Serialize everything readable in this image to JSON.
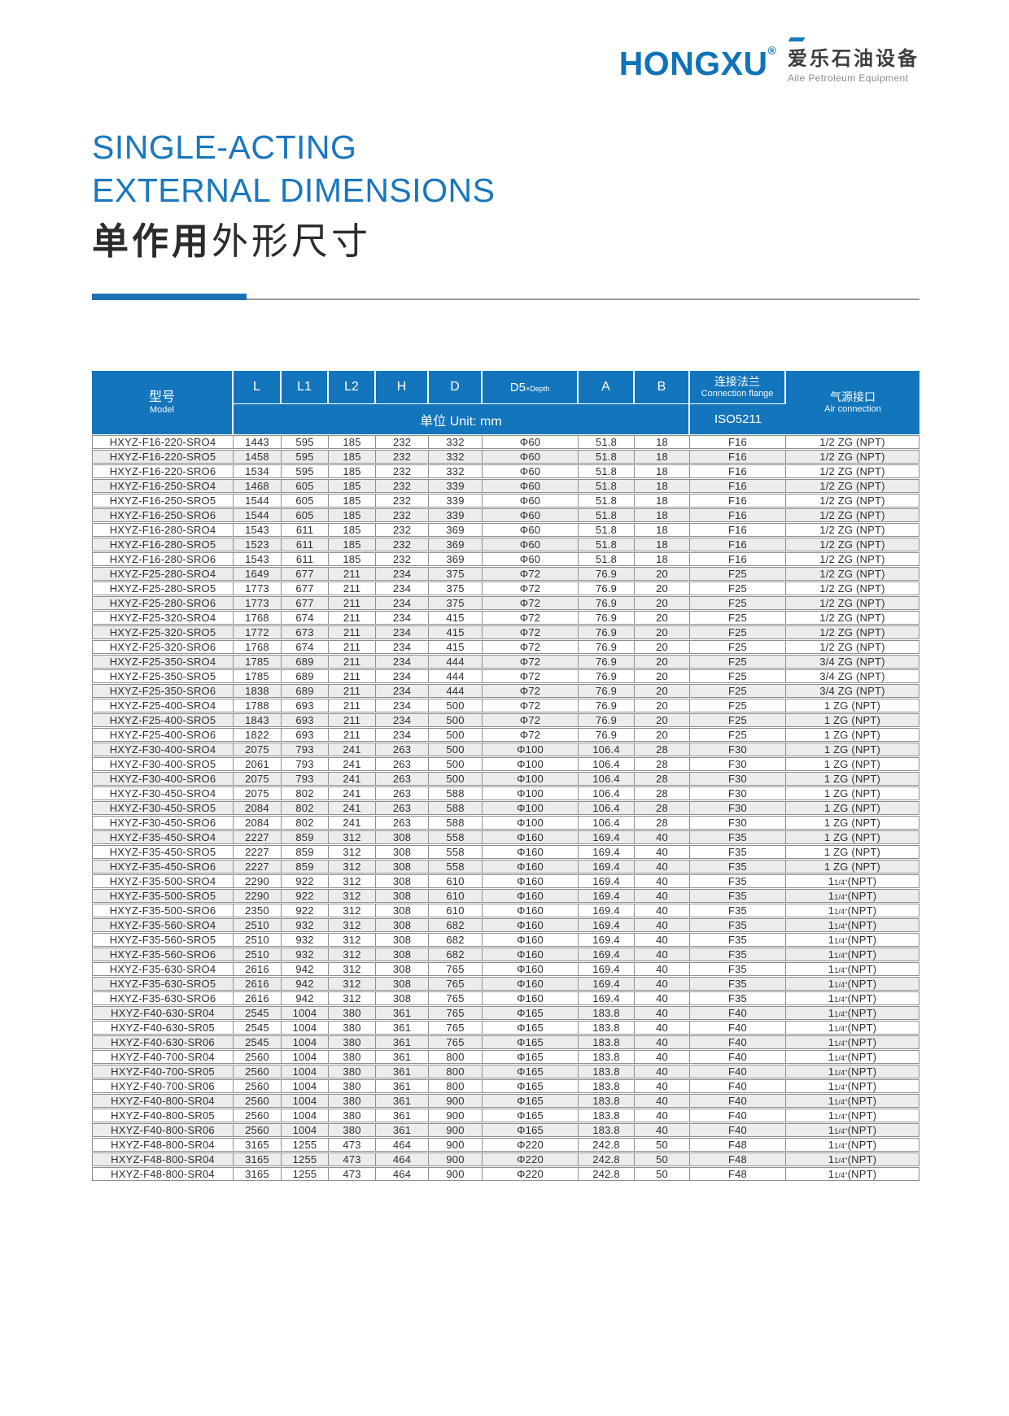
{
  "brand": {
    "name": "HONGXU",
    "reg": "®",
    "cn": "爱乐石油设备",
    "en": "Aile Petroleum Equipment",
    "accent_color": "#0e73b9"
  },
  "title": {
    "en_line1": "SINGLE-ACTING",
    "en_line2": "EXTERNAL DIMENSIONS",
    "cn_bold": "单作用",
    "cn_regular": "外形尺寸",
    "color": "#1a77be"
  },
  "table": {
    "header": {
      "model_cn": "型号",
      "model_en": "Model",
      "col_l": "L",
      "col_l1": "L1",
      "col_l2": "L2",
      "col_h": "H",
      "col_d": "D",
      "col_d5_main": "D5",
      "col_d5_sub": "×Depth",
      "col_a": "A",
      "col_b": "B",
      "unit": "单位 Unit: mm",
      "flange_cn": "连接法兰",
      "flange_en": "Connection flange",
      "flange_std": "ISO5211",
      "air_cn": "气源接口",
      "air_en": "Air connection",
      "header_bg": "#1375bb"
    },
    "rows": [
      [
        "HXYZ-F16-220-SRO4",
        "1443",
        "595",
        "185",
        "232",
        "332",
        "Φ60",
        "51.8",
        "18",
        "F16",
        "1/2 ZG (NPT)"
      ],
      [
        "HXYZ-F16-220-SRO5",
        "1458",
        "595",
        "185",
        "232",
        "332",
        "Φ60",
        "51.8",
        "18",
        "F16",
        "1/2 ZG (NPT)"
      ],
      [
        "HXYZ-F16-220-SRO6",
        "1534",
        "595",
        "185",
        "232",
        "332",
        "Φ60",
        "51.8",
        "18",
        "F16",
        "1/2 ZG (NPT)"
      ],
      [
        "HXYZ-F16-250-SRO4",
        "1468",
        "605",
        "185",
        "232",
        "339",
        "Φ60",
        "51.8",
        "18",
        "F16",
        "1/2 ZG (NPT)"
      ],
      [
        "HXYZ-F16-250-SRO5",
        "1544",
        "605",
        "185",
        "232",
        "339",
        "Φ60",
        "51.8",
        "18",
        "F16",
        "1/2 ZG (NPT)"
      ],
      [
        "HXYZ-F16-250-SRO6",
        "1544",
        "605",
        "185",
        "232",
        "339",
        "Φ60",
        "51.8",
        "18",
        "F16",
        "1/2 ZG (NPT)"
      ],
      [
        "HXYZ-F16-280-SRO4",
        "1543",
        "611",
        "185",
        "232",
        "369",
        "Φ60",
        "51.8",
        "18",
        "F16",
        "1/2 ZG (NPT)"
      ],
      [
        "HXYZ-F16-280-SRO5",
        "1523",
        "611",
        "185",
        "232",
        "369",
        "Φ60",
        "51.8",
        "18",
        "F16",
        "1/2 ZG (NPT)"
      ],
      [
        "HXYZ-F16-280-SRO6",
        "1543",
        "611",
        "185",
        "232",
        "369",
        "Φ60",
        "51.8",
        "18",
        "F16",
        "1/2 ZG (NPT)"
      ],
      [
        "HXYZ-F25-280-SRO4",
        "1649",
        "677",
        "211",
        "234",
        "375",
        "Φ72",
        "76.9",
        "20",
        "F25",
        "1/2 ZG (NPT)"
      ],
      [
        "HXYZ-F25-280-SRO5",
        "1773",
        "677",
        "211",
        "234",
        "375",
        "Φ72",
        "76.9",
        "20",
        "F25",
        "1/2 ZG (NPT)"
      ],
      [
        "HXYZ-F25-280-SRO6",
        "1773",
        "677",
        "211",
        "234",
        "375",
        "Φ72",
        "76.9",
        "20",
        "F25",
        "1/2 ZG (NPT)"
      ],
      [
        "HXYZ-F25-320-SRO4",
        "1768",
        "674",
        "211",
        "234",
        "415",
        "Φ72",
        "76.9",
        "20",
        "F25",
        "1/2 ZG (NPT)"
      ],
      [
        "HXYZ-F25-320-SRO5",
        "1772",
        "673",
        "211",
        "234",
        "415",
        "Φ72",
        "76.9",
        "20",
        "F25",
        "1/2 ZG (NPT)"
      ],
      [
        "HXYZ-F25-320-SRO6",
        "1768",
        "674",
        "211",
        "234",
        "415",
        "Φ72",
        "76.9",
        "20",
        "F25",
        "1/2 ZG (NPT)"
      ],
      [
        "HXYZ-F25-350-SRO4",
        "1785",
        "689",
        "211",
        "234",
        "444",
        "Φ72",
        "76.9",
        "20",
        "F25",
        "3/4 ZG (NPT)"
      ],
      [
        "HXYZ-F25-350-SRO5",
        "1785",
        "689",
        "211",
        "234",
        "444",
        "Φ72",
        "76.9",
        "20",
        "F25",
        "3/4 ZG (NPT)"
      ],
      [
        "HXYZ-F25-350-SRO6",
        "1838",
        "689",
        "211",
        "234",
        "444",
        "Φ72",
        "76.9",
        "20",
        "F25",
        "3/4 ZG (NPT)"
      ],
      [
        "HXYZ-F25-400-SRO4",
        "1788",
        "693",
        "211",
        "234",
        "500",
        "Φ72",
        "76.9",
        "20",
        "F25",
        "1 ZG (NPT)"
      ],
      [
        "HXYZ-F25-400-SRO5",
        "1843",
        "693",
        "211",
        "234",
        "500",
        "Φ72",
        "76.9",
        "20",
        "F25",
        "1 ZG (NPT)"
      ],
      [
        "HXYZ-F25-400-SRO6",
        "1822",
        "693",
        "211",
        "234",
        "500",
        "Φ72",
        "76.9",
        "20",
        "F25",
        "1 ZG (NPT)"
      ],
      [
        "HXYZ-F30-400-SRO4",
        "2075",
        "793",
        "241",
        "263",
        "500",
        "Φ100",
        "106.4",
        "28",
        "F30",
        "1 ZG (NPT)"
      ],
      [
        "HXYZ-F30-400-SRO5",
        "2061",
        "793",
        "241",
        "263",
        "500",
        "Φ100",
        "106.4",
        "28",
        "F30",
        "1 ZG (NPT)"
      ],
      [
        "HXYZ-F30-400-SRO6",
        "2075",
        "793",
        "241",
        "263",
        "500",
        "Φ100",
        "106.4",
        "28",
        "F30",
        "1 ZG (NPT)"
      ],
      [
        "HXYZ-F30-450-SRO4",
        "2075",
        "802",
        "241",
        "263",
        "588",
        "Φ100",
        "106.4",
        "28",
        "F30",
        "1 ZG (NPT)"
      ],
      [
        "HXYZ-F30-450-SRO5",
        "2084",
        "802",
        "241",
        "263",
        "588",
        "Φ100",
        "106.4",
        "28",
        "F30",
        "1 ZG (NPT)"
      ],
      [
        "HXYZ-F30-450-SRO6",
        "2084",
        "802",
        "241",
        "263",
        "588",
        "Φ100",
        "106.4",
        "28",
        "F30",
        "1 ZG (NPT)"
      ],
      [
        "HXYZ-F35-450-SRO4",
        "2227",
        "859",
        "312",
        "308",
        "558",
        "Φ160",
        "169.4",
        "40",
        "F35",
        "1 ZG (NPT)"
      ],
      [
        "HXYZ-F35-450-SRO5",
        "2227",
        "859",
        "312",
        "308",
        "558",
        "Φ160",
        "169.4",
        "40",
        "F35",
        "1 ZG (NPT)"
      ],
      [
        "HXYZ-F35-450-SRO6",
        "2227",
        "859",
        "312",
        "308",
        "558",
        "Φ160",
        "169.4",
        "40",
        "F35",
        "1 ZG (NPT)"
      ],
      [
        "HXYZ-F35-500-SRO4",
        "2290",
        "922",
        "312",
        "308",
        "610",
        "Φ160",
        "169.4",
        "40",
        "F35",
        "11/4\"(NPT)"
      ],
      [
        "HXYZ-F35-500-SRO5",
        "2290",
        "922",
        "312",
        "308",
        "610",
        "Φ160",
        "169.4",
        "40",
        "F35",
        "11/4\"(NPT)"
      ],
      [
        "HXYZ-F35-500-SRO6",
        "2350",
        "922",
        "312",
        "308",
        "610",
        "Φ160",
        "169.4",
        "40",
        "F35",
        "11/4\"(NPT)"
      ],
      [
        "HXYZ-F35-560-SRO4",
        "2510",
        "932",
        "312",
        "308",
        "682",
        "Φ160",
        "169.4",
        "40",
        "F35",
        "11/4\"(NPT)"
      ],
      [
        "HXYZ-F35-560-SRO5",
        "2510",
        "932",
        "312",
        "308",
        "682",
        "Φ160",
        "169.4",
        "40",
        "F35",
        "11/4\"(NPT)"
      ],
      [
        "HXYZ-F35-560-SRO6",
        "2510",
        "932",
        "312",
        "308",
        "682",
        "Φ160",
        "169.4",
        "40",
        "F35",
        "11/4\"(NPT)"
      ],
      [
        "HXYZ-F35-630-SRO4",
        "2616",
        "942",
        "312",
        "308",
        "765",
        "Φ160",
        "169.4",
        "40",
        "F35",
        "11/4\"(NPT)"
      ],
      [
        "HXYZ-F35-630-SRO5",
        "2616",
        "942",
        "312",
        "308",
        "765",
        "Φ160",
        "169.4",
        "40",
        "F35",
        "11/4\"(NPT)"
      ],
      [
        "HXYZ-F35-630-SRO6",
        "2616",
        "942",
        "312",
        "308",
        "765",
        "Φ160",
        "169.4",
        "40",
        "F35",
        "11/4\"(NPT)"
      ],
      [
        "HXYZ-F40-630-SR04",
        "2545",
        "1004",
        "380",
        "361",
        "765",
        "Φ165",
        "183.8",
        "40",
        "F40",
        "11/4\"(NPT)"
      ],
      [
        "HXYZ-F40-630-SR05",
        "2545",
        "1004",
        "380",
        "361",
        "765",
        "Φ165",
        "183.8",
        "40",
        "F40",
        "11/4\"(NPT)"
      ],
      [
        "HXYZ-F40-630-SR06",
        "2545",
        "1004",
        "380",
        "361",
        "765",
        "Φ165",
        "183.8",
        "40",
        "F40",
        "11/4\"(NPT)"
      ],
      [
        "HXYZ-F40-700-SR04",
        "2560",
        "1004",
        "380",
        "361",
        "800",
        "Φ165",
        "183.8",
        "40",
        "F40",
        "11/4\"(NPT)"
      ],
      [
        "HXYZ-F40-700-SR05",
        "2560",
        "1004",
        "380",
        "361",
        "800",
        "Φ165",
        "183.8",
        "40",
        "F40",
        "11/4\"(NPT)"
      ],
      [
        "HXYZ-F40-700-SR06",
        "2560",
        "1004",
        "380",
        "361",
        "800",
        "Φ165",
        "183.8",
        "40",
        "F40",
        "11/4\"(NPT)"
      ],
      [
        "HXYZ-F40-800-SR04",
        "2560",
        "1004",
        "380",
        "361",
        "900",
        "Φ165",
        "183.8",
        "40",
        "F40",
        "11/4\"(NPT)"
      ],
      [
        "HXYZ-F40-800-SR05",
        "2560",
        "1004",
        "380",
        "361",
        "900",
        "Φ165",
        "183.8",
        "40",
        "F40",
        "11/4\"(NPT)"
      ],
      [
        "HXYZ-F40-800-SR06",
        "2560",
        "1004",
        "380",
        "361",
        "900",
        "Φ165",
        "183.8",
        "40",
        "F40",
        "11/4\"(NPT)"
      ],
      [
        "HXYZ-F48-800-SR04",
        "3165",
        "1255",
        "473",
        "464",
        "900",
        "Φ220",
        "242.8",
        "50",
        "F48",
        "11/4\"(NPT)"
      ],
      [
        "HXYZ-F48-800-SR04",
        "3165",
        "1255",
        "473",
        "464",
        "900",
        "Φ220",
        "242.8",
        "50",
        "F48",
        "11/4\"(NPT)"
      ],
      [
        "HXYZ-F48-800-SR04",
        "3165",
        "1255",
        "473",
        "464",
        "900",
        "Φ220",
        "242.8",
        "50",
        "F48",
        "11/4\"(NPT)"
      ]
    ]
  }
}
